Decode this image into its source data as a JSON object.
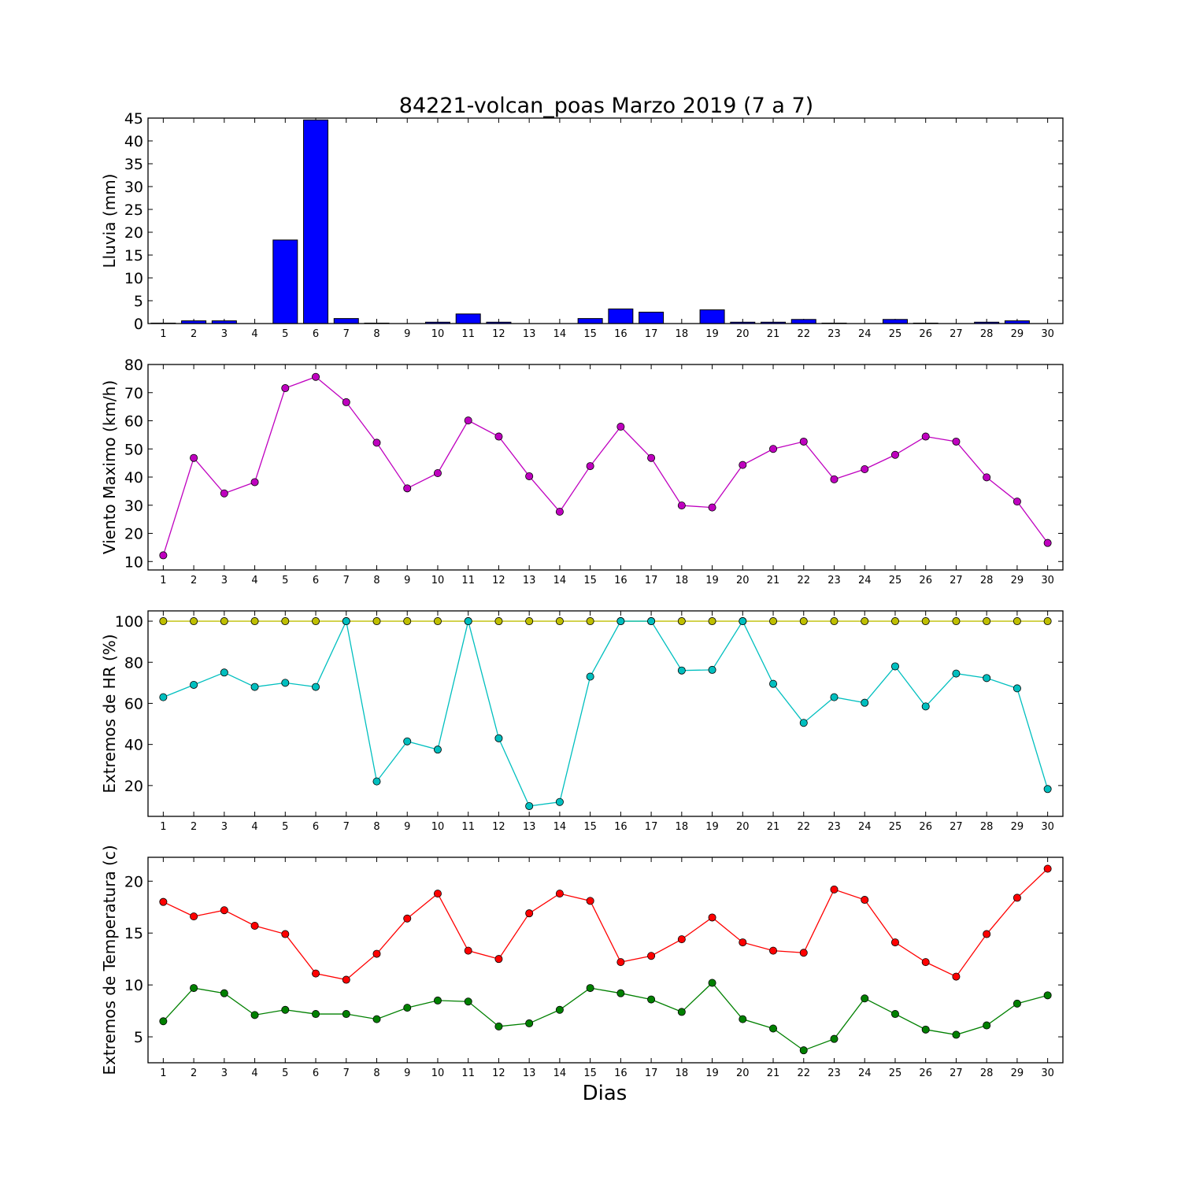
{
  "title": "84221-volcan_poas Marzo 2019  (7 a 7)",
  "xlabel": "Dias",
  "chart_data": [
    {
      "type": "bar",
      "ylabel": "Lluvia (mm)",
      "ylim": [
        0,
        45
      ],
      "yticks": [
        0,
        5,
        10,
        15,
        20,
        25,
        30,
        35,
        40,
        45
      ],
      "x": [
        1,
        2,
        3,
        4,
        5,
        6,
        7,
        8,
        9,
        10,
        11,
        12,
        13,
        14,
        15,
        16,
        17,
        18,
        19,
        20,
        21,
        22,
        23,
        24,
        25,
        26,
        27,
        28,
        29,
        30
      ],
      "series": [
        {
          "color": "#0000ff",
          "values": [
            0.1,
            0.6,
            0.6,
            0,
            18.3,
            44.6,
            1.1,
            0.1,
            0,
            0.3,
            2.1,
            0.3,
            0,
            0,
            1.1,
            3.2,
            2.5,
            0,
            3.0,
            0.3,
            0.3,
            0.9,
            0.1,
            0,
            0.9,
            0.1,
            0,
            0.3,
            0.6,
            0
          ]
        }
      ]
    },
    {
      "type": "line",
      "ylabel": "Viento Maximo (km/h)",
      "ylim": [
        7,
        80
      ],
      "yticks": [
        10,
        20,
        30,
        40,
        50,
        60,
        70,
        80
      ],
      "x": [
        1,
        2,
        3,
        4,
        5,
        6,
        7,
        8,
        9,
        10,
        11,
        12,
        13,
        14,
        15,
        16,
        17,
        18,
        19,
        20,
        21,
        22,
        23,
        24,
        25,
        26,
        27,
        28,
        29,
        30
      ],
      "series": [
        {
          "color": "#bf00bf",
          "values": [
            12.2,
            46.8,
            34.2,
            38.2,
            71.6,
            75.6,
            66.6,
            52.2,
            36.0,
            41.4,
            60.1,
            54.4,
            40.3,
            27.7,
            43.9,
            57.9,
            46.8,
            29.9,
            29.2,
            44.3,
            50.0,
            52.6,
            39.2,
            42.8,
            47.9,
            54.4,
            52.6,
            39.9,
            31.3,
            16.6
          ]
        }
      ]
    },
    {
      "type": "line",
      "ylabel": "Extremos de HR (%)",
      "ylim": [
        5,
        105
      ],
      "yticks": [
        20,
        40,
        60,
        80,
        100
      ],
      "x": [
        1,
        2,
        3,
        4,
        5,
        6,
        7,
        8,
        9,
        10,
        11,
        12,
        13,
        14,
        15,
        16,
        17,
        18,
        19,
        20,
        21,
        22,
        23,
        24,
        25,
        26,
        27,
        28,
        29,
        30
      ],
      "series": [
        {
          "color": "#bfbf00",
          "values": [
            100,
            100,
            100,
            100,
            100,
            100,
            100,
            100,
            100,
            100,
            100,
            100,
            100,
            100,
            100,
            100,
            100,
            100,
            100,
            100,
            100,
            100,
            100,
            100,
            100,
            100,
            100,
            100,
            100,
            100
          ]
        },
        {
          "color": "#00bfbf",
          "values": [
            63,
            69,
            75,
            68,
            70,
            68,
            100,
            22,
            41.5,
            37.5,
            100,
            43,
            10,
            12,
            73,
            100,
            100,
            76,
            76.3,
            100,
            69.5,
            50.5,
            63,
            60.3,
            78,
            58.5,
            74.5,
            72.3,
            67.3,
            18.3
          ]
        }
      ]
    },
    {
      "type": "line",
      "ylabel": "Extremos de Temperatura (c)",
      "ylim": [
        2.5,
        22.3
      ],
      "yticks": [
        5,
        10,
        15,
        20
      ],
      "x": [
        1,
        2,
        3,
        4,
        5,
        6,
        7,
        8,
        9,
        10,
        11,
        12,
        13,
        14,
        15,
        16,
        17,
        18,
        19,
        20,
        21,
        22,
        23,
        24,
        25,
        26,
        27,
        28,
        29,
        30
      ],
      "series": [
        {
          "color": "#ff0000",
          "values": [
            18.0,
            16.6,
            17.2,
            15.7,
            14.9,
            11.1,
            10.5,
            13.0,
            16.4,
            18.8,
            13.3,
            12.5,
            16.9,
            18.8,
            18.1,
            12.2,
            12.8,
            14.4,
            16.5,
            14.1,
            13.3,
            13.1,
            19.2,
            18.2,
            14.1,
            12.2,
            10.8,
            14.9,
            18.4,
            21.2
          ]
        },
        {
          "color": "#008000",
          "values": [
            6.5,
            9.7,
            9.2,
            7.1,
            7.6,
            7.2,
            7.2,
            6.7,
            7.8,
            8.5,
            8.4,
            6.0,
            6.3,
            7.6,
            9.7,
            9.2,
            8.6,
            7.4,
            10.2,
            6.7,
            5.8,
            3.7,
            4.8,
            8.7,
            7.2,
            5.7,
            5.2,
            6.1,
            8.2,
            9.0
          ]
        }
      ]
    }
  ]
}
